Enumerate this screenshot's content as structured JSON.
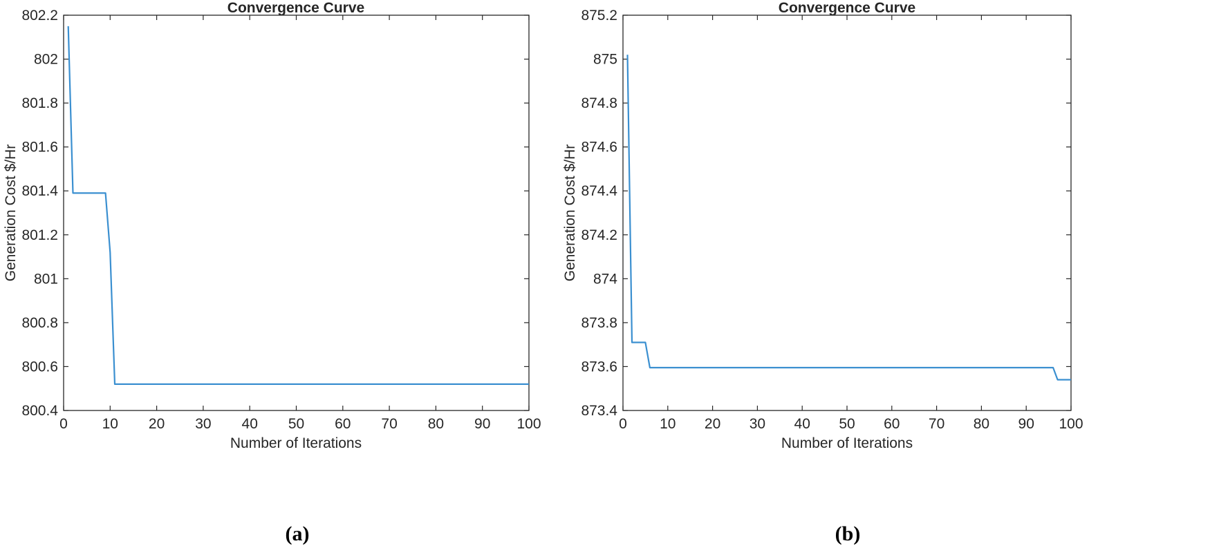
{
  "chart_data": [
    {
      "type": "line",
      "panel_label": "(a)",
      "title": "Convergence Curve",
      "xlabel": "Number of Iterations",
      "ylabel": "Generation Cost $/Hr",
      "xlim": [
        0,
        100
      ],
      "ylim": [
        800.4,
        802.2
      ],
      "xticks": [
        0,
        10,
        20,
        30,
        40,
        50,
        60,
        70,
        80,
        90,
        100
      ],
      "yticks": [
        800.4,
        800.6,
        800.8,
        801,
        801.2,
        801.4,
        801.6,
        801.8,
        802,
        802.2
      ],
      "xtick_labels": [
        "0",
        "10",
        "20",
        "30",
        "40",
        "50",
        "60",
        "70",
        "80",
        "90",
        "100"
      ],
      "ytick_labels": [
        "800.4",
        "800.6",
        "800.8",
        "801",
        "801.2",
        "801.4",
        "801.6",
        "801.8",
        "802",
        "802.2"
      ],
      "grid": false,
      "line_color": "#3a8fd0",
      "series": [
        {
          "x": [
            1,
            2,
            9,
            10,
            11,
            100
          ],
          "y": [
            802.15,
            801.39,
            801.39,
            801.12,
            800.52,
            800.52
          ]
        }
      ]
    },
    {
      "type": "line",
      "panel_label": "(b)",
      "title": "Convergence Curve",
      "xlabel": "Number of Iterations",
      "ylabel": "Generation Cost $/Hr",
      "xlim": [
        0,
        100
      ],
      "ylim": [
        873.4,
        875.2
      ],
      "xticks": [
        0,
        10,
        20,
        30,
        40,
        50,
        60,
        70,
        80,
        90,
        100
      ],
      "yticks": [
        873.4,
        873.6,
        873.8,
        874,
        874.2,
        874.4,
        874.6,
        874.8,
        875,
        875.2
      ],
      "xtick_labels": [
        "0",
        "10",
        "20",
        "30",
        "40",
        "50",
        "60",
        "70",
        "80",
        "90",
        "100"
      ],
      "ytick_labels": [
        "873.4",
        "873.6",
        "873.8",
        "874",
        "874.2",
        "874.4",
        "874.6",
        "874.8",
        "875",
        "875.2"
      ],
      "grid": false,
      "line_color": "#3a8fd0",
      "series": [
        {
          "x": [
            1,
            2,
            5,
            6,
            96,
            97,
            100
          ],
          "y": [
            875.02,
            873.71,
            873.71,
            873.595,
            873.595,
            873.54,
            873.54
          ]
        }
      ]
    }
  ]
}
